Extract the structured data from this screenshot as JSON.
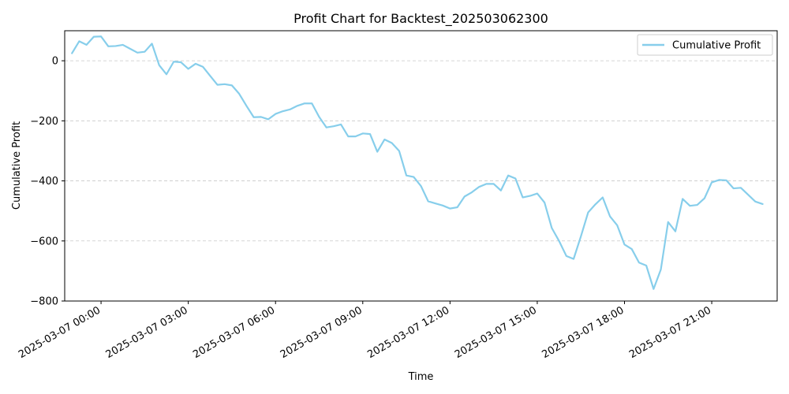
{
  "chart_data": {
    "type": "line",
    "title": "Profit Chart for Backtest_202503062300",
    "xlabel": "Time",
    "ylabel": "Cumulative Profit",
    "ylim": [
      -800,
      100
    ],
    "xlim": [
      "2025-03-06 22:45",
      "2025-03-07 23:15"
    ],
    "yticks": [
      0,
      -200,
      -400,
      -600,
      -800
    ],
    "yticklabels": [
      "0",
      "−200",
      "−400",
      "−600",
      "−800"
    ],
    "xticks": [
      "2025-03-07 00:00",
      "2025-03-07 03:00",
      "2025-03-07 06:00",
      "2025-03-07 09:00",
      "2025-03-07 12:00",
      "2025-03-07 15:00",
      "2025-03-07 18:00",
      "2025-03-07 21:00"
    ],
    "xticklabels": [
      "2025-03-07 00:00",
      "2025-03-07 03:00",
      "2025-03-07 06:00",
      "2025-03-07 09:00",
      "2025-03-07 12:00",
      "2025-03-07 15:00",
      "2025-03-07 18:00",
      "2025-03-07 21:00"
    ],
    "grid": {
      "y": true,
      "x": false,
      "style": "dashed"
    },
    "legend": {
      "position": "top-right"
    },
    "series": [
      {
        "name": "Cumulative Profit",
        "color": "#87ceeb",
        "x": [
          "2025-03-06 23:00",
          "2025-03-06 23:15",
          "2025-03-06 23:30",
          "2025-03-06 23:45",
          "2025-03-07 00:00",
          "2025-03-07 00:15",
          "2025-03-07 00:30",
          "2025-03-07 00:45",
          "2025-03-07 01:00",
          "2025-03-07 01:15",
          "2025-03-07 01:30",
          "2025-03-07 01:45",
          "2025-03-07 02:00",
          "2025-03-07 02:15",
          "2025-03-07 02:30",
          "2025-03-07 02:45",
          "2025-03-07 03:00",
          "2025-03-07 03:15",
          "2025-03-07 03:30",
          "2025-03-07 03:45",
          "2025-03-07 04:00",
          "2025-03-07 04:15",
          "2025-03-07 04:30",
          "2025-03-07 04:45",
          "2025-03-07 05:00",
          "2025-03-07 05:15",
          "2025-03-07 05:30",
          "2025-03-07 05:45",
          "2025-03-07 06:00",
          "2025-03-07 06:15",
          "2025-03-07 06:30",
          "2025-03-07 06:45",
          "2025-03-07 07:00",
          "2025-03-07 07:15",
          "2025-03-07 07:30",
          "2025-03-07 07:45",
          "2025-03-07 08:00",
          "2025-03-07 08:15",
          "2025-03-07 08:30",
          "2025-03-07 08:45",
          "2025-03-07 09:00",
          "2025-03-07 09:15",
          "2025-03-07 09:30",
          "2025-03-07 09:45",
          "2025-03-07 10:00",
          "2025-03-07 10:15",
          "2025-03-07 10:30",
          "2025-03-07 10:45",
          "2025-03-07 11:00",
          "2025-03-07 11:15",
          "2025-03-07 11:30",
          "2025-03-07 11:45",
          "2025-03-07 12:00",
          "2025-03-07 12:15",
          "2025-03-07 12:30",
          "2025-03-07 12:45",
          "2025-03-07 13:00",
          "2025-03-07 13:15",
          "2025-03-07 13:30",
          "2025-03-07 13:45",
          "2025-03-07 14:00",
          "2025-03-07 14:15",
          "2025-03-07 14:30",
          "2025-03-07 14:45",
          "2025-03-07 15:00",
          "2025-03-07 15:15",
          "2025-03-07 15:30",
          "2025-03-07 15:45",
          "2025-03-07 16:00",
          "2025-03-07 16:15",
          "2025-03-07 16:30",
          "2025-03-07 16:45",
          "2025-03-07 17:00",
          "2025-03-07 17:15",
          "2025-03-07 17:30",
          "2025-03-07 17:45",
          "2025-03-07 18:00",
          "2025-03-07 18:15",
          "2025-03-07 18:30",
          "2025-03-07 18:45",
          "2025-03-07 19:00",
          "2025-03-07 19:15",
          "2025-03-07 19:30",
          "2025-03-07 19:45",
          "2025-03-07 20:00",
          "2025-03-07 20:15",
          "2025-03-07 20:30",
          "2025-03-07 20:45",
          "2025-03-07 21:00",
          "2025-03-07 21:15",
          "2025-03-07 21:30",
          "2025-03-07 21:45",
          "2025-03-07 22:00",
          "2025-03-07 22:15",
          "2025-03-07 22:30",
          "2025-03-07 22:45"
        ],
        "y": [
          25,
          65,
          53,
          80,
          81,
          48,
          49,
          53,
          40,
          27,
          30,
          57,
          -15,
          -45,
          -3,
          -5,
          -27,
          -10,
          -20,
          -50,
          -80,
          -78,
          -82,
          -110,
          -150,
          -188,
          -187,
          -195,
          -177,
          -168,
          -162,
          -150,
          -142,
          -142,
          -187,
          -222,
          -218,
          -212,
          -252,
          -252,
          -242,
          -244,
          -303,
          -262,
          -274,
          -300,
          -382,
          -387,
          -417,
          -468,
          -475,
          -482,
          -492,
          -488,
          -452,
          -438,
          -420,
          -410,
          -410,
          -432,
          -382,
          -392,
          -455,
          -450,
          -442,
          -472,
          -557,
          -600,
          -650,
          -660,
          -585,
          -505,
          -478,
          -455,
          -518,
          -548,
          -612,
          -627,
          -672,
          -682,
          -760,
          -695,
          -537,
          -568,
          -460,
          -483,
          -480,
          -458,
          -405,
          -397,
          -398,
          -425,
          -423,
          -446,
          -469,
          -477
        ]
      }
    ]
  }
}
